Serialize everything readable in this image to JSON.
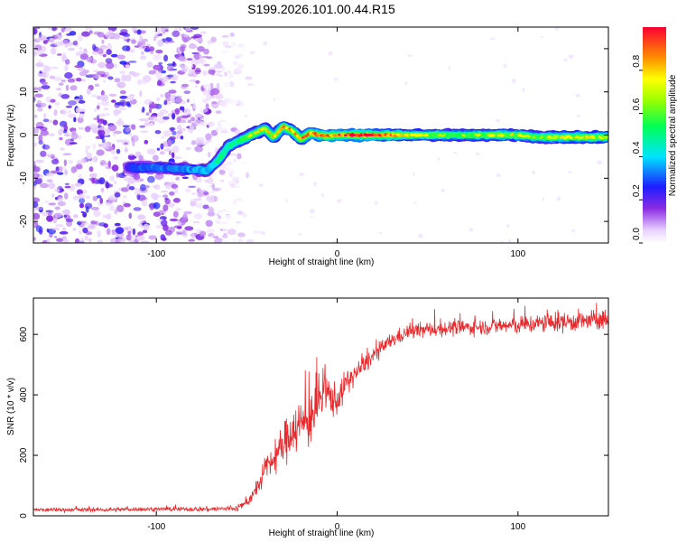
{
  "figure_title": "S199.2026.101.00.44.R15",
  "colors": {
    "snr_line": "#e8282b",
    "axis": "#000000",
    "background": "#ffffff"
  },
  "chart_data": [
    {
      "type": "heatmap",
      "title": "S199.2026.101.00.44.R15",
      "xlabel": "Height of straight line (km)",
      "ylabel": "Frequency (Hz)",
      "xlim": [
        -168,
        150
      ],
      "ylim": [
        -25,
        25
      ],
      "x_ticks": [
        -100,
        0,
        100
      ],
      "x_tick_labels": [
        "-100",
        "0",
        "100"
      ],
      "y_ticks": [
        -20,
        -10,
        0,
        10,
        20
      ],
      "y_tick_labels": [
        "-20",
        "-10",
        "0",
        "10",
        "20"
      ],
      "colorbar": {
        "label": "Normalized spectral amplitude",
        "range": [
          0,
          1
        ],
        "ticks": [
          0.0,
          0.2,
          0.4,
          0.6,
          0.8
        ],
        "tick_labels": [
          "0.0",
          "0.2",
          "0.4",
          "0.6",
          "0.8"
        ],
        "colormap": "rainbow"
      },
      "ridge": {
        "height_km": [
          -115,
          -100,
          -90,
          -80,
          -72,
          -66,
          -60,
          -55,
          -50,
          -45,
          -40,
          -35,
          -30,
          -25,
          -20,
          -15,
          -10,
          -5,
          0,
          10,
          20,
          40,
          60,
          80,
          100,
          110,
          120,
          150
        ],
        "frequency_hz": [
          -7.5,
          -7.5,
          -7.8,
          -8.0,
          -8.2,
          -6,
          -2.5,
          -1.5,
          -0.5,
          0.5,
          1.5,
          -0.5,
          2.0,
          1.0,
          -1.0,
          0.5,
          0.0,
          -0.2,
          0.0,
          0.0,
          0.0,
          0.0,
          0.0,
          0.0,
          0.0,
          -0.5,
          -0.5,
          -0.5
        ],
        "amplitude": [
          0.25,
          0.3,
          0.3,
          0.35,
          0.4,
          0.45,
          0.5,
          0.55,
          0.65,
          0.7,
          0.75,
          0.75,
          0.8,
          0.8,
          0.85,
          0.85,
          0.9,
          0.9,
          0.9,
          0.95,
          0.95,
          0.7,
          0.6,
          0.65,
          0.7,
          0.6,
          0.7,
          0.7
        ]
      },
      "noise_region_height_km": [
        -168,
        -60
      ]
    },
    {
      "type": "line",
      "xlabel": "Height of straight line (km)",
      "ylabel": "SNR (10 * v/v)",
      "xlim": [
        -168,
        150
      ],
      "ylim": [
        0,
        720
      ],
      "x_ticks": [
        -100,
        0,
        100
      ],
      "x_tick_labels": [
        "-100",
        "0",
        "100"
      ],
      "y_ticks": [
        0,
        200,
        400,
        600
      ],
      "y_tick_labels": [
        "0",
        "200",
        "400",
        "600"
      ],
      "series": [
        {
          "name": "SNR",
          "x": [
            -168,
            -150,
            -130,
            -110,
            -90,
            -70,
            -55,
            -50,
            -45,
            -40,
            -35,
            -30,
            -25,
            -20,
            -15,
            -10,
            -5,
            0,
            5,
            10,
            20,
            30,
            40,
            60,
            80,
            100,
            120,
            140,
            150
          ],
          "y": [
            20,
            20,
            20,
            22,
            22,
            22,
            25,
            45,
            80,
            150,
            190,
            230,
            290,
            300,
            320,
            380,
            400,
            380,
            440,
            470,
            530,
            580,
            610,
            620,
            625,
            630,
            640,
            645,
            650
          ],
          "noise_amplitude": [
            8,
            8,
            8,
            8,
            8,
            10,
            12,
            20,
            30,
            45,
            60,
            80,
            100,
            110,
            110,
            100,
            90,
            60,
            50,
            40,
            35,
            30,
            30,
            30,
            30,
            35,
            40,
            40,
            40
          ]
        }
      ]
    }
  ]
}
